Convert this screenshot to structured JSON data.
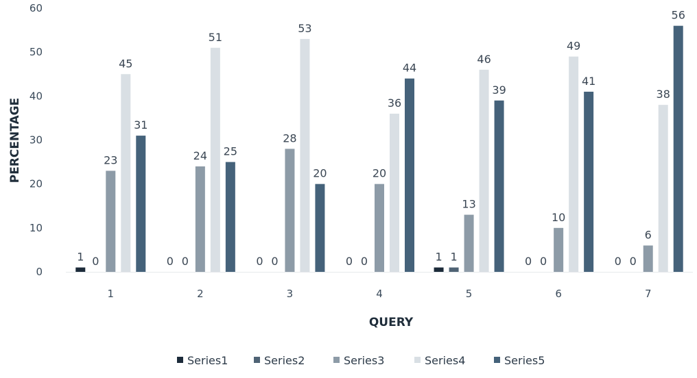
{
  "chart_data": {
    "type": "bar",
    "title": "",
    "xlabel": "QUERY",
    "ylabel": "PERCENTAGE",
    "ylim": [
      0,
      60
    ],
    "yticks": [
      0,
      10,
      20,
      30,
      40,
      50,
      60
    ],
    "grid": false,
    "legend_position": "bottom",
    "categories": [
      "1",
      "2",
      "3",
      "4",
      "5",
      "6",
      "7"
    ],
    "series": [
      {
        "name": "Series1",
        "color": "#1c2b3a",
        "values": [
          1,
          0,
          0,
          0,
          1,
          0,
          0
        ]
      },
      {
        "name": "Series2",
        "color": "#4f6375",
        "values": [
          0,
          0,
          0,
          0,
          1,
          0,
          0
        ]
      },
      {
        "name": "Series3",
        "color": "#8d9ba7",
        "values": [
          23,
          24,
          28,
          20,
          13,
          10,
          6
        ]
      },
      {
        "name": "Series4",
        "color": "#d9dfe4",
        "values": [
          45,
          51,
          53,
          36,
          46,
          49,
          38
        ]
      },
      {
        "name": "Series5",
        "color": "#45627a",
        "values": [
          31,
          25,
          20,
          44,
          39,
          41,
          56
        ]
      }
    ]
  }
}
